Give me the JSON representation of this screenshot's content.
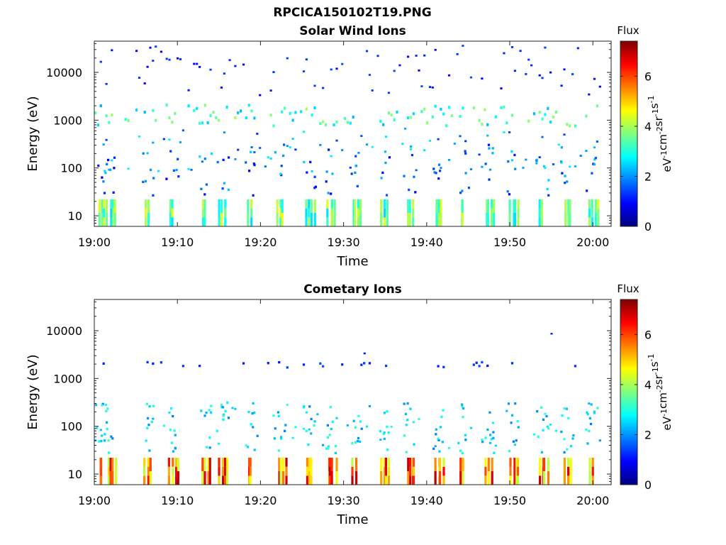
{
  "page_title": "RPCICA150102T19.PNG",
  "chart_data": [
    {
      "type": "heatmap",
      "title": "Solar Wind Ions",
      "xlabel": "Time",
      "ylabel": "Energy (eV)",
      "x_ticks": [
        "19:00",
        "19:10",
        "19:20",
        "19:30",
        "19:40",
        "19:50",
        "20:00"
      ],
      "x_range": [
        "19:00",
        "20:01"
      ],
      "y_scale": "log",
      "y_ticks": [
        10,
        100,
        1000,
        10000
      ],
      "y_range": [
        6,
        45000
      ],
      "colorbar": {
        "title": "Flux",
        "label": "eV-1cm-2sr-1s-1",
        "ticks": [
          0,
          2,
          4,
          6
        ],
        "range": [
          0,
          7.4
        ],
        "colormap": "jet"
      },
      "colormap_stops": [
        "#00007f",
        "#0000ff",
        "#007fff",
        "#00ffff",
        "#7fff7f",
        "#ffff00",
        "#ff7f00",
        "#ff0000",
        "#7f0000"
      ],
      "patterns": {
        "low_band_energy_ev": [
          6,
          22
        ],
        "low_band_flux": [
          2.5,
          4.5
        ],
        "main_band_energy_ev": [
          700,
          2000
        ],
        "main_band_flux": [
          2.2,
          4.0
        ],
        "scatter_flux": [
          0.8,
          2.6
        ],
        "high_energy_flux": [
          0.8,
          1.5
        ]
      }
    },
    {
      "type": "heatmap",
      "title": "Cometary Ions",
      "xlabel": "Time",
      "ylabel": "Energy (eV)",
      "x_ticks": [
        "19:00",
        "19:10",
        "19:20",
        "19:30",
        "19:40",
        "19:50",
        "20:00"
      ],
      "x_range": [
        "19:00",
        "20:01"
      ],
      "y_scale": "log",
      "y_ticks": [
        10,
        100,
        1000,
        10000
      ],
      "y_range": [
        6,
        45000
      ],
      "colorbar": {
        "title": "Flux",
        "label": "eV-1cm-2sr-1s-1",
        "ticks": [
          0,
          2,
          4,
          6
        ],
        "range": [
          0,
          7.4
        ],
        "colormap": "jet"
      },
      "colormap_stops": [
        "#00007f",
        "#0000ff",
        "#007fff",
        "#00ffff",
        "#7fff7f",
        "#ffff00",
        "#ff7f00",
        "#ff0000",
        "#7f0000"
      ],
      "patterns": {
        "low_band_energy_ev": [
          6,
          22
        ],
        "low_band_flux": [
          4.0,
          7.0
        ],
        "main_band_energy_ev": [
          1600,
          2100
        ],
        "main_band_flux": [
          1.0,
          1.6
        ],
        "scatter_flux": [
          1.8,
          3.2
        ],
        "high_energy_flux": [
          1.0,
          1.5
        ]
      }
    }
  ],
  "burst_times_min": [
    0.5,
    1.5,
    6,
    9,
    13,
    15,
    18.5,
    22,
    25.5,
    28,
    31,
    34.5,
    37.5,
    41,
    44,
    47,
    50,
    53.5,
    56.5,
    59.5
  ]
}
